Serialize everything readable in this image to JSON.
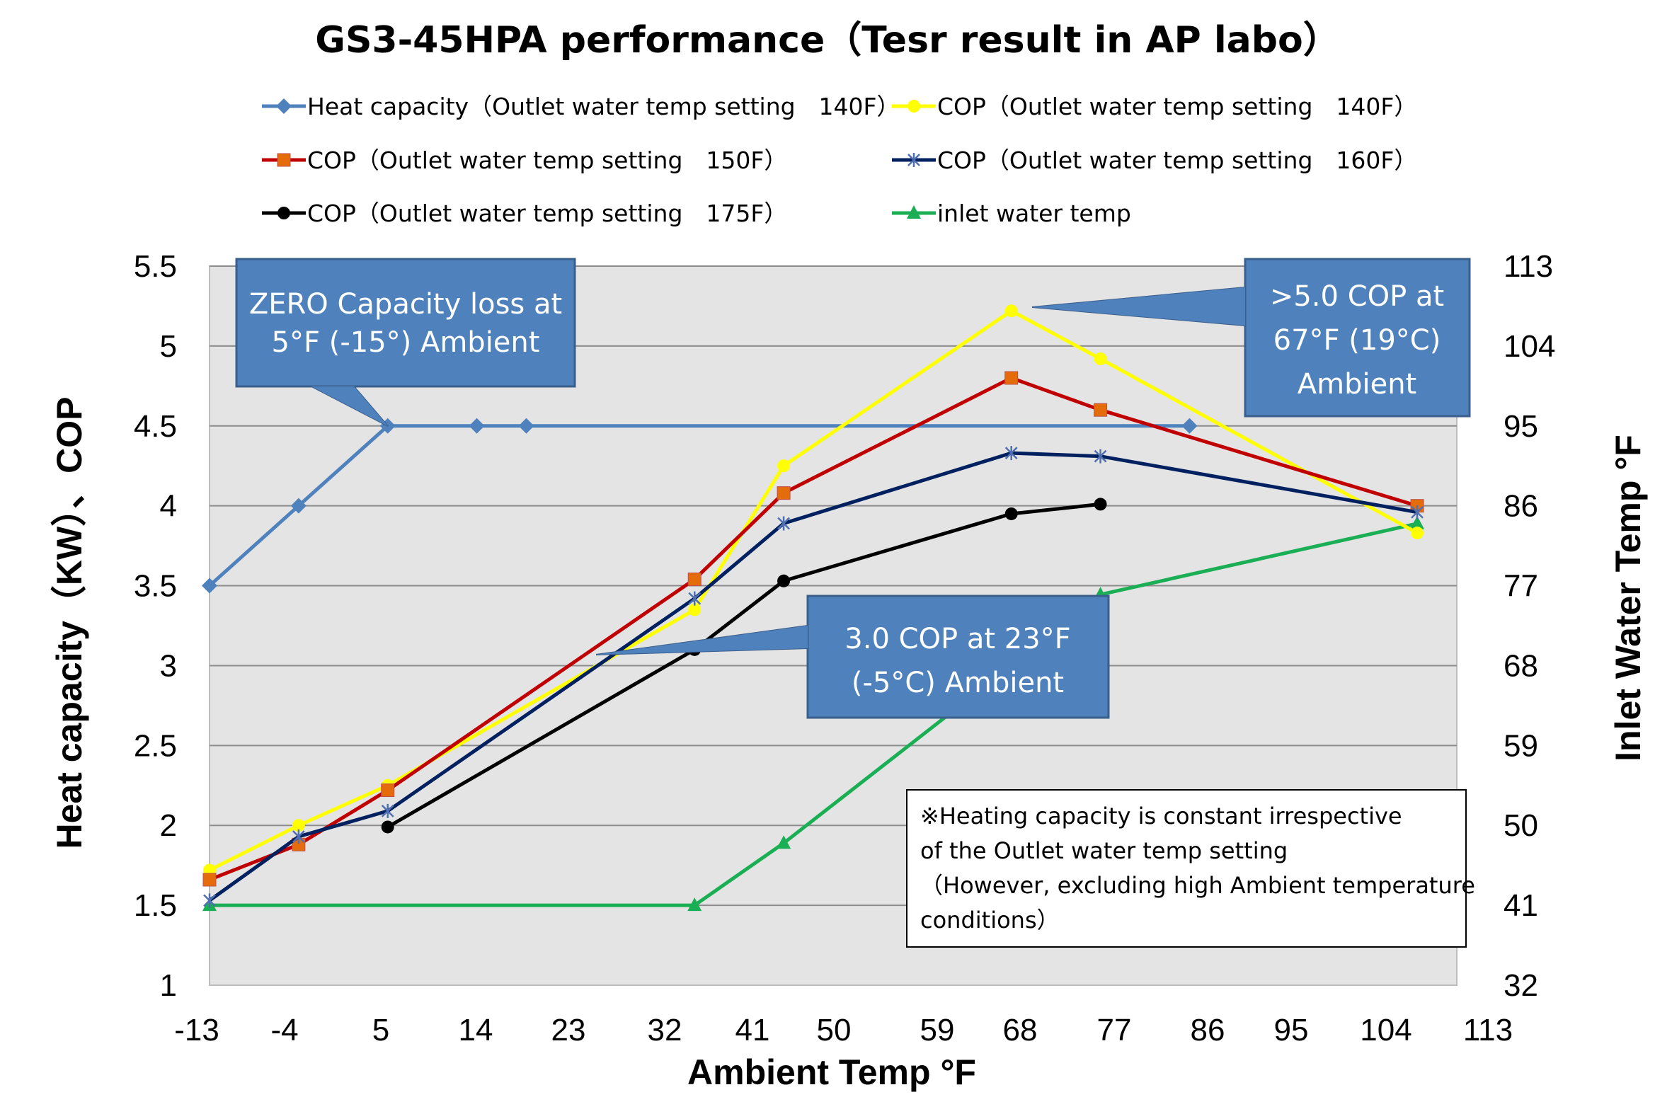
{
  "chart_data": {
    "type": "line",
    "title": "GS3-45HPA performance（Tesr result in AP labo）",
    "xlabel": "Ambient Temp °F",
    "ylabel": "Heat capacity（KW）、COP",
    "y2label": "Inlet Water Temp °F",
    "xlim": [
      -13,
      113
    ],
    "ylim": [
      1,
      5.5
    ],
    "y2lim": [
      32,
      113
    ],
    "xticks": [
      "-13",
      "-4",
      "5",
      "14",
      "23",
      "32",
      "41",
      "50",
      "59",
      "68",
      "77",
      "86",
      "95",
      "104",
      "113"
    ],
    "yticks": [
      "1",
      "1.5",
      "2",
      "2.5",
      "3",
      "3.5",
      "4",
      "4.5",
      "5",
      "5.5"
    ],
    "y2ticks": [
      "32",
      "41",
      "50",
      "59",
      "68",
      "77",
      "86",
      "95",
      "104",
      "113"
    ],
    "grid": true,
    "legend_position": "top",
    "series": [
      {
        "name": "Heat capacity（Outlet water temp setting　140F）",
        "color": "#4F81BD",
        "marker": "diamond",
        "axis": "left",
        "x": [
          -13,
          -4,
          5,
          14,
          19,
          86
        ],
        "y": [
          3.5,
          4.0,
          4.5,
          4.5,
          4.5,
          4.5
        ]
      },
      {
        "name": "COP（Outlet water temp setting　140F）",
        "color": "#FFFF00",
        "marker": "circle",
        "axis": "left",
        "x": [
          -13,
          -4,
          5,
          36,
          45,
          68,
          77,
          109
        ],
        "y": [
          1.72,
          2.0,
          2.25,
          3.35,
          4.25,
          5.22,
          4.92,
          3.83
        ]
      },
      {
        "name": "COP（Outlet water temp setting　150F）",
        "color": "#C00000",
        "marker": "square",
        "axis": "left",
        "x": [
          -13,
          -4,
          5,
          36,
          45,
          68,
          77,
          109
        ],
        "y": [
          1.66,
          1.88,
          2.22,
          3.54,
          4.08,
          4.8,
          4.6,
          4.0
        ]
      },
      {
        "name": "COP（Outlet water temp setting　160F）",
        "color": "#002060",
        "marker": "star",
        "axis": "left",
        "x": [
          -13,
          -4,
          5,
          36,
          45,
          68,
          77,
          109
        ],
        "y": [
          1.53,
          1.93,
          2.09,
          3.42,
          3.89,
          4.33,
          4.31,
          3.96
        ]
      },
      {
        "name": "COP（Outlet water temp setting　175F）",
        "color": "#000000",
        "marker": "circle",
        "axis": "left",
        "x": [
          5,
          36,
          45,
          68,
          77
        ],
        "y": [
          1.99,
          3.1,
          3.53,
          3.95,
          4.01
        ]
      },
      {
        "name": "inlet water temp",
        "color": "#1AAF54",
        "marker": "triangle",
        "axis": "right",
        "x": [
          -13,
          36,
          45,
          68,
          77,
          109
        ],
        "y": [
          41,
          41,
          48,
          68,
          76,
          84
        ]
      }
    ],
    "annotations": [
      {
        "lines": [
          "ZERO Capacity loss at",
          "5°F (-15°) Ambient"
        ]
      },
      {
        "lines": [
          ">5.0 COP at",
          "67°F (19°C)",
          "Ambient"
        ]
      },
      {
        "lines": [
          "3.0 COP at 23°F",
          "(-5°C) Ambient"
        ]
      }
    ],
    "note": [
      "※Heating capacity is constant irrespective",
      "of the Outlet water temp setting",
      "（However, excluding high Ambient temperature",
      "conditions）"
    ]
  }
}
